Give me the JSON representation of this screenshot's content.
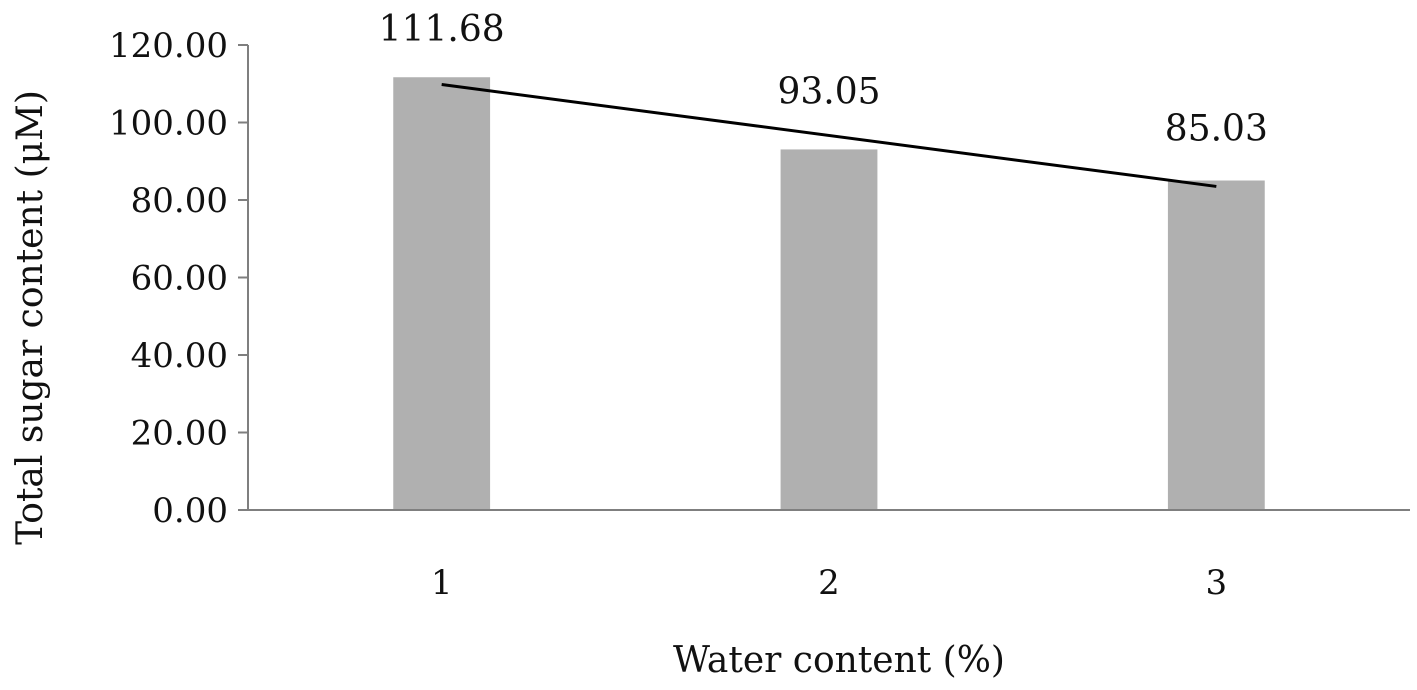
{
  "chart_data": {
    "type": "bar",
    "title": "",
    "xlabel": "Water content (%)",
    "ylabel": "Total sugar content (μM)",
    "categories": [
      "1",
      "2",
      "3"
    ],
    "series": [
      {
        "values": [
          111.68,
          93.05,
          85.03
        ]
      }
    ],
    "data_labels": [
      "111.68",
      "93.05",
      "85.03"
    ],
    "trendline": {
      "type": "linear",
      "start": 109.8,
      "end": 83.5
    },
    "ylim": [
      0,
      120
    ],
    "yticks": [
      0,
      20,
      40,
      60,
      80,
      100,
      120
    ],
    "ytick_labels": [
      "0.00",
      "20.00",
      "40.00",
      "60.00",
      "80.00",
      "100.00",
      "120.00"
    ],
    "grid": false,
    "legend": "none",
    "colors": {
      "bar": "#b0b0b0",
      "trendline": "#000000",
      "axis": "#7f7f7f"
    }
  }
}
